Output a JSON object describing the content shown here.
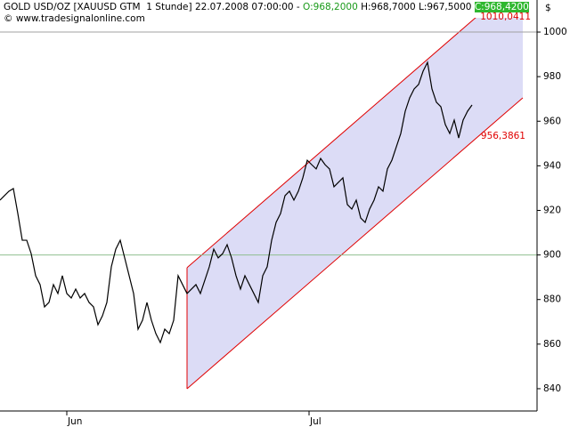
{
  "chart_data": {
    "type": "line",
    "title": "GOLD USD/OZ [XAUUSD GTM  1 Stunde] 22.07.2008 07:00:00 - ",
    "ohlc": [
      "O:968,2000",
      "H:968,7000",
      "L:967,5000",
      "C:968,4200"
    ],
    "subtitle": "© www.tradesignalonline.com",
    "y_label": "$",
    "color": "#000000",
    "values": [
      924.6,
      926.6,
      928.6,
      929.8,
      918.6,
      906.6,
      906.6,
      900.6,
      890.7,
      886.7,
      876.7,
      878.7,
      886.7,
      882.7,
      890.7,
      882.7,
      880.7,
      884.7,
      880.7,
      882.7,
      878.7,
      876.7,
      868.7,
      872.7,
      878.7,
      894.7,
      902.6,
      906.6,
      898.7,
      890.7,
      882.7,
      866.7,
      870.7,
      878.7,
      870.7,
      864.7,
      860.7,
      866.7,
      864.7,
      870.7,
      890.7,
      886.7,
      882.7,
      884.7,
      886.7,
      882.7,
      888.7,
      894.7,
      902.6,
      898.7,
      900.6,
      904.6,
      898.7,
      890.7,
      884.7,
      890.7,
      886.7,
      882.7,
      878.7,
      890.7,
      894.7,
      906.6,
      914.6,
      918.6,
      926.6,
      928.6,
      924.6,
      928.6,
      934.6,
      942.5,
      940.5,
      938.6,
      943.3,
      940.5,
      938.6,
      930.6,
      932.6,
      934.6,
      922.6,
      920.6,
      924.6,
      916.6,
      914.6,
      920.6,
      924.6,
      930.6,
      928.6,
      938.6,
      942.5,
      948.5,
      954.5,
      964.5,
      970.5,
      974.5,
      976.5,
      982.4,
      986.4,
      974.5,
      968.5,
      966.5,
      958.5,
      954.5,
      960.5,
      952.5,
      960.5,
      964.5,
      967.3
    ],
    "xlim": [
      0,
      120.6
    ],
    "xticks": [
      {
        "value": 15,
        "label": "Jun"
      },
      {
        "value": 69.4,
        "label": "Jul"
      }
    ],
    "ylim": [
      830,
      1006.4
    ],
    "yticks": [
      840,
      860,
      880,
      900,
      920,
      940,
      960,
      980,
      1000
    ],
    "hlines": [
      {
        "value": 1000,
        "color": "#a0a0a0"
      },
      {
        "value": 900,
        "color": "#8fbf8f"
      }
    ],
    "channel": {
      "x": [
        42,
        117.4
      ],
      "upper": [
        894.3,
        1024.8
      ],
      "lower": [
        840,
        970.5
      ],
      "fill": "#dcdcf6",
      "color": "#e00000",
      "labels": [
        "1010,0411",
        "956,3861"
      ]
    }
  }
}
